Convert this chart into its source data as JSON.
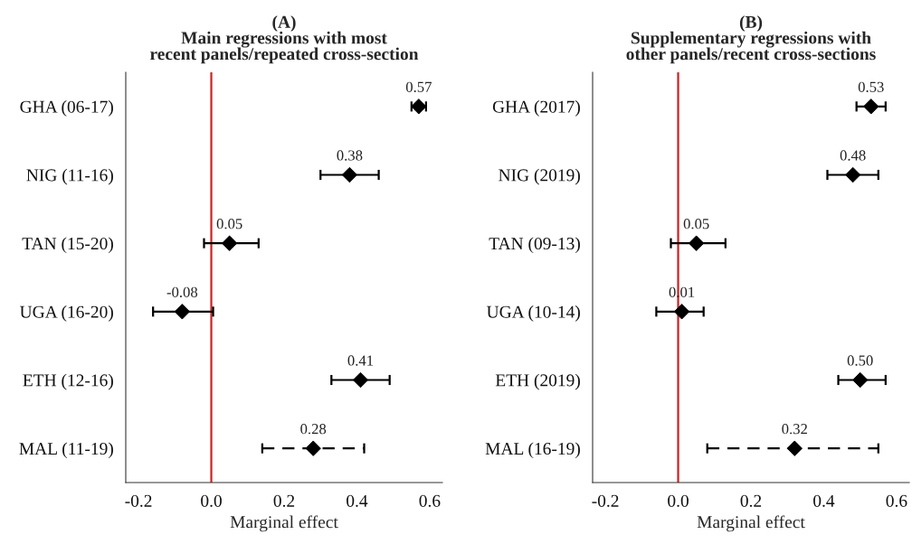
{
  "chart_data": [
    {
      "type": "scatter",
      "title": "(A)\nMain regressions with most\nrecent panels/repeated cross-section",
      "xlabel": "Marginal effect",
      "categories": [
        "GHA (06-17)",
        "NIG (11-16)",
        "TAN (15-20)",
        "UGA (16-20)",
        "ETH (12-16)",
        "MAL (11-19)"
      ],
      "orientation": "horizontal",
      "marker": "diamond",
      "series": [
        {
          "color": "#000000",
          "line_style": "solid",
          "values": [
            0.57,
            0.38,
            0.05,
            -0.08,
            0.41,
            null
          ],
          "value_labels": [
            "0.57",
            "0.38",
            "0.05",
            "-0.08",
            "0.41",
            null
          ],
          "errors": [
            [
              0.55,
              0.59
            ],
            [
              0.3,
              0.46
            ],
            [
              -0.02,
              0.13
            ],
            [
              -0.16,
              0.005
            ],
            [
              0.33,
              0.49
            ],
            null
          ]
        },
        {
          "color": "#000000",
          "line_style": "dashed",
          "values": [
            null,
            null,
            null,
            null,
            null,
            0.28
          ],
          "value_labels": [
            null,
            null,
            null,
            null,
            null,
            "0.28"
          ],
          "errors": [
            null,
            null,
            null,
            null,
            null,
            [
              0.14,
              0.42
            ]
          ]
        }
      ],
      "xlim": [
        -0.235,
        0.635
      ],
      "xticks": [
        {
          "value": -0.2,
          "label": "-0.2"
        },
        {
          "value": 0,
          "label": "0.0"
        },
        {
          "value": 0.2,
          "label": "0.2"
        },
        {
          "value": 0.4,
          "label": "0.4"
        },
        {
          "value": 0.6,
          "label": "0.6"
        }
      ],
      "ref_lines": [
        {
          "axis": "x",
          "value": 0,
          "color": "#cc2222"
        }
      ]
    },
    {
      "type": "scatter",
      "title": "(B)\nSupplementary regressions with\nother panels/recent cross-sections",
      "xlabel": "Marginal effect",
      "categories": [
        "GHA (2017)",
        "NIG (2019)",
        "TAN (09-13)",
        "UGA (10-14)",
        "ETH (2019)",
        "MAL (16-19)"
      ],
      "orientation": "horizontal",
      "marker": "diamond",
      "series": [
        {
          "color": "#000000",
          "line_style": "solid",
          "values": [
            0.53,
            0.48,
            0.05,
            0.01,
            0.5,
            null
          ],
          "value_labels": [
            "0.53",
            "0.48",
            "0.05",
            "0.01",
            "0.50",
            null
          ],
          "errors": [
            [
              0.49,
              0.57
            ],
            [
              0.41,
              0.55
            ],
            [
              -0.02,
              0.13
            ],
            [
              -0.06,
              0.07
            ],
            [
              0.44,
              0.57
            ],
            null
          ]
        },
        {
          "color": "#000000",
          "line_style": "dashed",
          "values": [
            null,
            null,
            null,
            null,
            null,
            0.32
          ],
          "value_labels": [
            null,
            null,
            null,
            null,
            null,
            "0.32"
          ],
          "errors": [
            null,
            null,
            null,
            null,
            null,
            [
              0.08,
              0.55
            ]
          ]
        }
      ],
      "xlim": [
        -0.235,
        0.635
      ],
      "xticks": [
        {
          "value": -0.2,
          "label": "-0.2"
        },
        {
          "value": 0,
          "label": "0.0"
        },
        {
          "value": 0.2,
          "label": "0.2"
        },
        {
          "value": 0.4,
          "label": "0.4"
        },
        {
          "value": 0.6,
          "label": "0.6"
        }
      ],
      "ref_lines": [
        {
          "axis": "x",
          "value": 0,
          "color": "#cc2222"
        }
      ]
    }
  ]
}
